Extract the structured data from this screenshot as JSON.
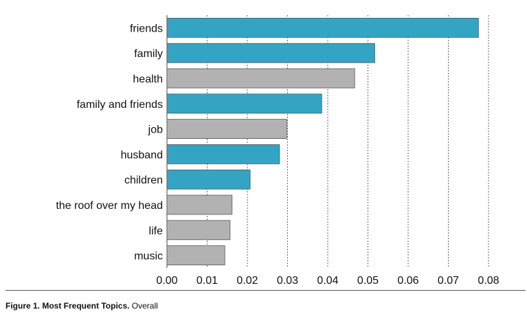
{
  "chart_data": {
    "type": "bar",
    "orientation": "horizontal",
    "categories": [
      "friends",
      "family",
      "health",
      "family and friends",
      "job",
      "husband",
      "children",
      "the roof over my head",
      "life",
      "music"
    ],
    "values": [
      0.0775,
      0.0517,
      0.0467,
      0.0385,
      0.0298,
      0.028,
      0.0207,
      0.0162,
      0.0157,
      0.0144
    ],
    "highlighted": [
      true,
      true,
      false,
      true,
      false,
      true,
      true,
      false,
      false,
      false
    ],
    "xlim": [
      0,
      0.08
    ],
    "xticks": [
      "0.00",
      "0.01",
      "0.02",
      "0.03",
      "0.04",
      "0.05",
      "0.06",
      "0.07",
      "0.08"
    ],
    "grid": "vertical-dotted",
    "colors": {
      "highlight": "#34a4c4",
      "default": "#b2b2b2",
      "bar_edge": "#555555"
    }
  },
  "caption": {
    "label": "Figure 1. Most Frequent Topics.",
    "text": " Overall"
  }
}
